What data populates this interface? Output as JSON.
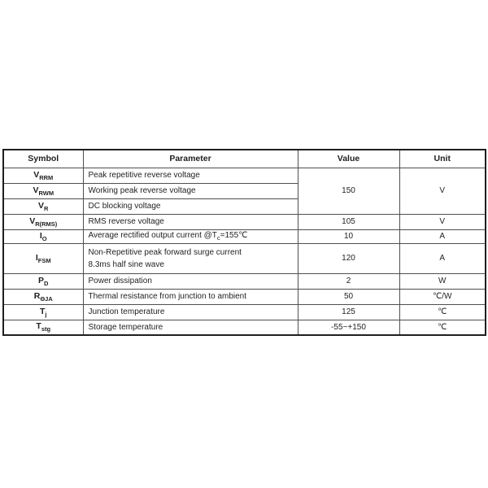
{
  "colors": {
    "background": "#ffffff",
    "outer_border": "#1f1f1f",
    "inner_border": "#4f4f4f",
    "text": "#1f1f1f"
  },
  "table": {
    "headers": {
      "symbol": "Symbol",
      "parameter": "Parameter",
      "value": "Value",
      "unit": "Unit"
    },
    "rows": [
      {
        "symbol_base": "V",
        "symbol_sub": "RRM",
        "parameter": "Peak repetitive reverse voltage",
        "value": "150",
        "unit": "V"
      },
      {
        "symbol_base": "V",
        "symbol_sub": "RWM",
        "parameter": "Working peak reverse voltage"
      },
      {
        "symbol_base": "V",
        "symbol_sub": "R",
        "parameter": "DC blocking voltage"
      },
      {
        "symbol_base": "V",
        "symbol_sub": "R(RMS)",
        "parameter": "RMS reverse voltage",
        "value": "105",
        "unit": "V"
      },
      {
        "symbol_base": "I",
        "symbol_sub": "O",
        "parameter_parts": {
          "before": "Average rectified output current @T",
          "sub": "c",
          "after": "=155℃"
        },
        "value": "10",
        "unit": "A"
      },
      {
        "symbol_base": "I",
        "symbol_sub": "FSM",
        "parameter_line1": "Non-Repetitive peak forward surge current",
        "parameter_line2": "8.3ms half sine wave",
        "value": "120",
        "unit": "A"
      },
      {
        "symbol_base": "P",
        "symbol_sub": "D",
        "parameter": "Power dissipation",
        "value": "2",
        "unit": "W"
      },
      {
        "symbol_base": "R",
        "symbol_sub": "ΘJA",
        "parameter": "Thermal resistance from junction to ambient",
        "value": "50",
        "unit": "℃/W"
      },
      {
        "symbol_base": "T",
        "symbol_sub": "j",
        "parameter": "Junction temperature",
        "value": "125",
        "unit": "℃"
      },
      {
        "symbol_base": "T",
        "symbol_sub": "stg",
        "parameter": "Storage temperature",
        "value": "-55~+150",
        "unit": "℃"
      }
    ]
  }
}
